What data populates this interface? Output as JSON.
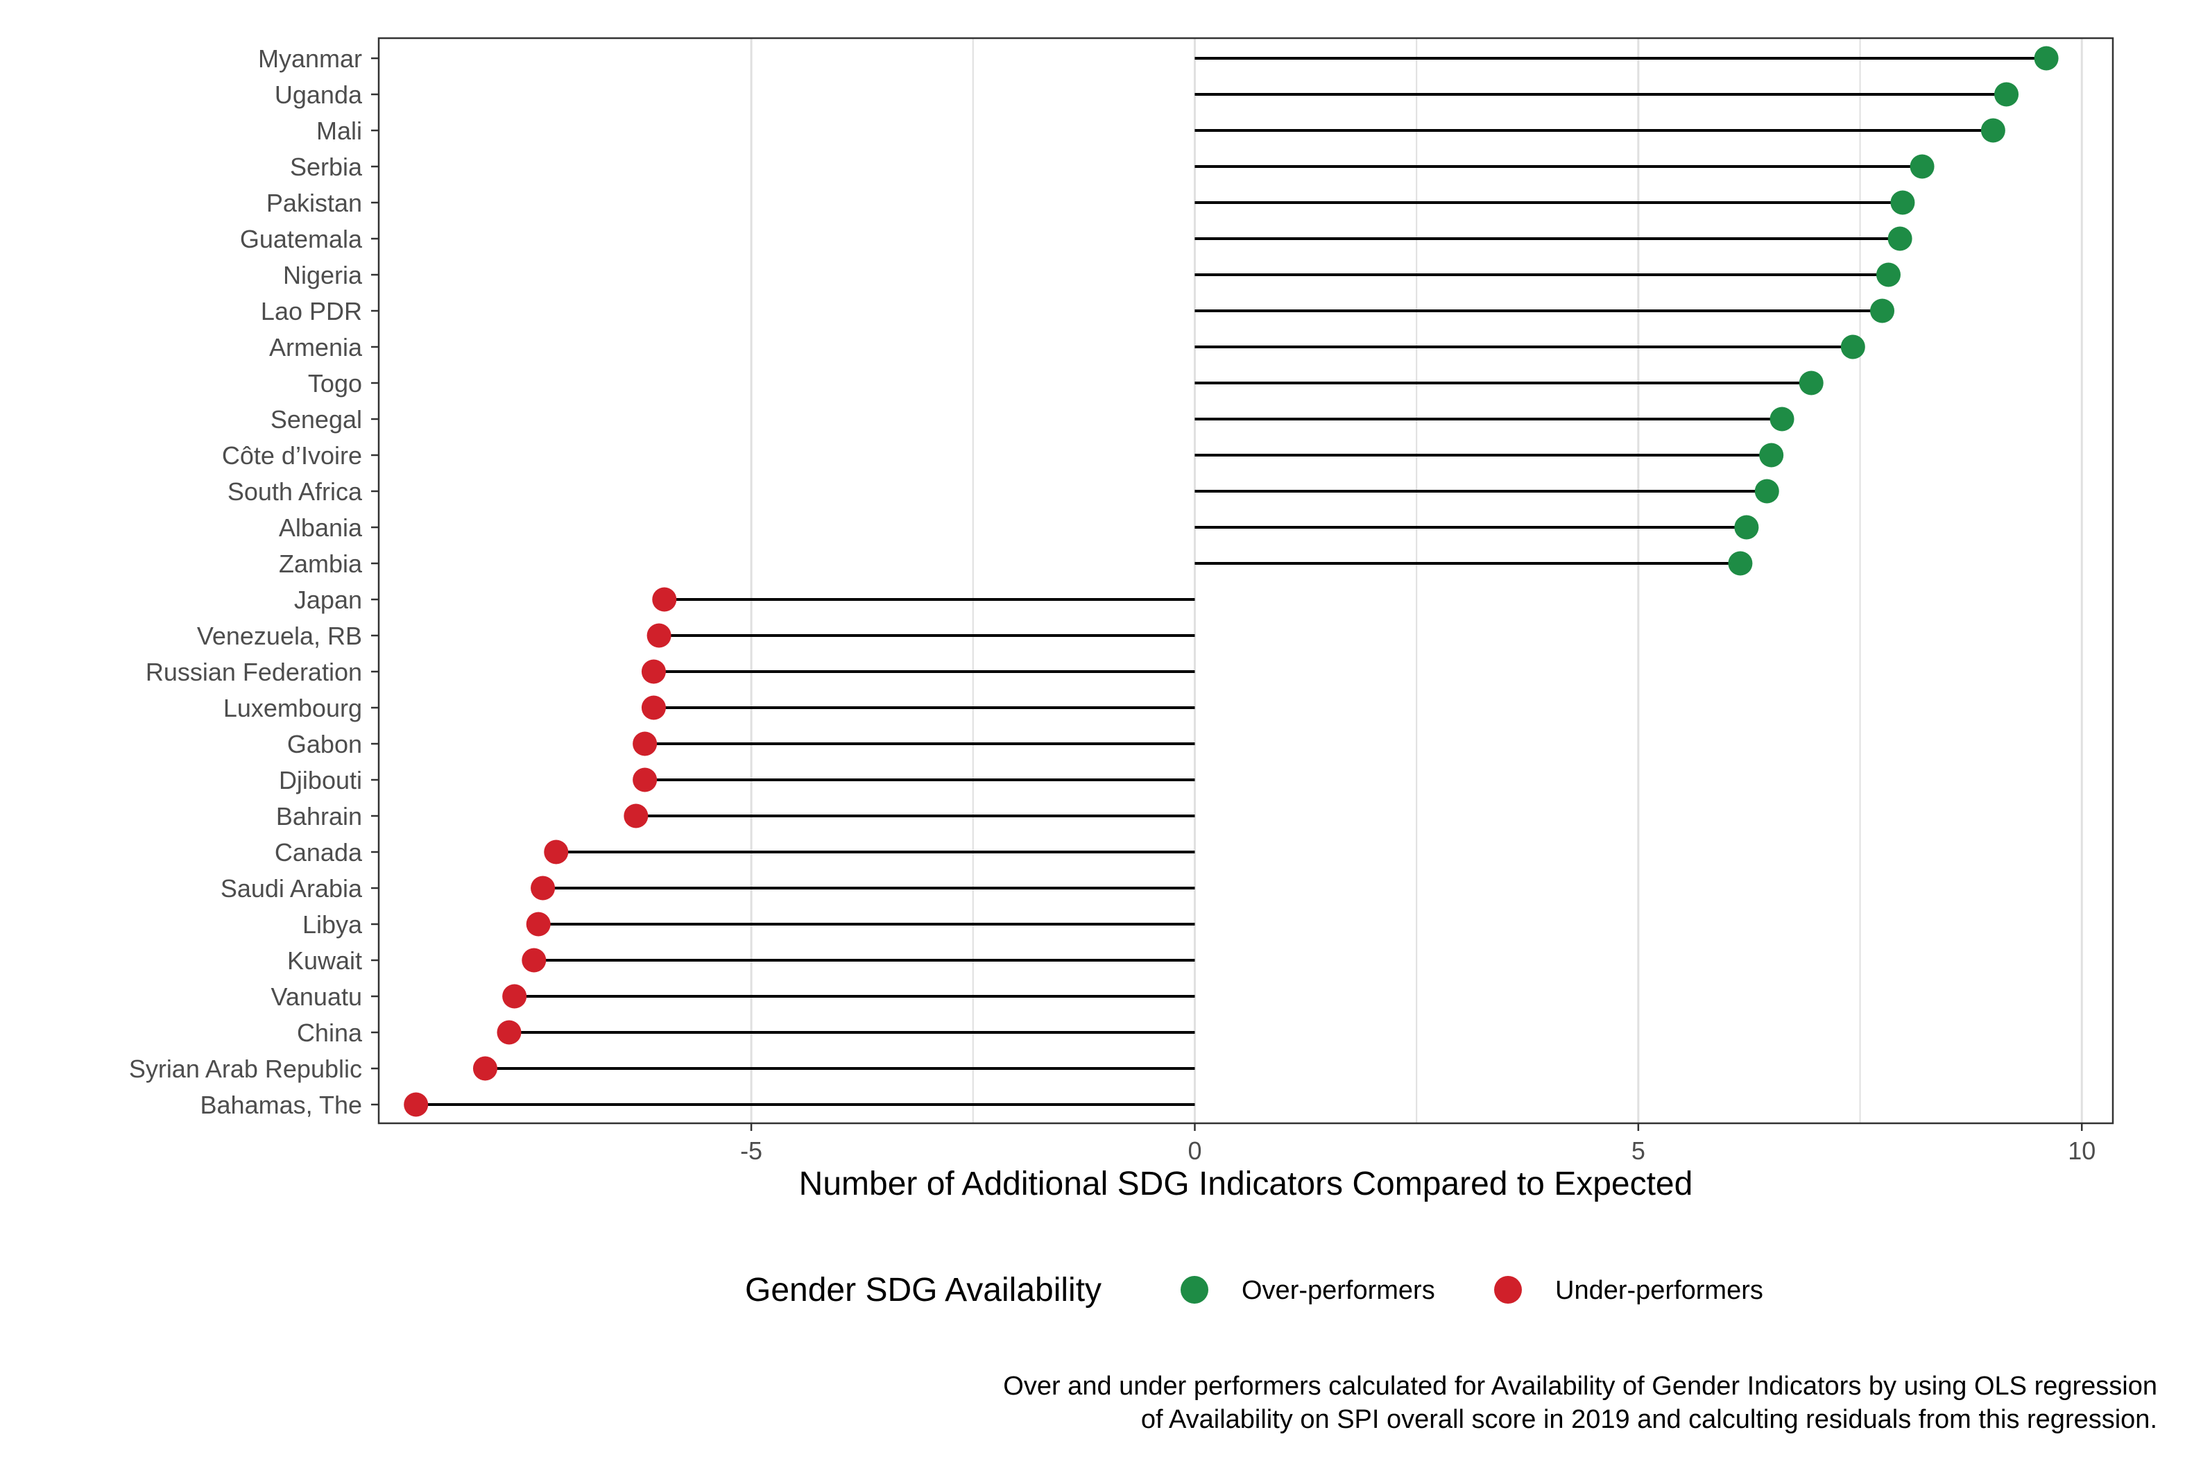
{
  "chart_data": {
    "type": "lollipop",
    "xlabel": "Number of Additional SDG Indicators Compared to Expected",
    "ylabel": "",
    "xlim": [
      -9.2,
      10.35
    ],
    "x_ticks": [
      -5,
      0,
      5,
      10
    ],
    "x_tick_labels": [
      "-5",
      "0",
      "5",
      "10"
    ],
    "grid": true,
    "legend": {
      "title": "Gender SDG Availability",
      "position": "bottom",
      "entries": [
        {
          "label": "Over-performers",
          "color": "#1e8c45"
        },
        {
          "label": "Under-performers",
          "color": "#d0202a"
        }
      ]
    },
    "caption": [
      "Over and under performers calculated for Availability of Gender Indicators by using OLS regression",
      "of Availability on SPI overall score in 2019 and calculting residuals from this regression."
    ],
    "categories": [
      "Myanmar",
      "Uganda",
      "Mali",
      "Serbia",
      "Pakistan",
      "Guatemala",
      "Nigeria",
      "Lao PDR",
      "Armenia",
      "Togo",
      "Senegal",
      "Côte d’Ivoire",
      "South Africa",
      "Albania",
      "Zambia",
      "Japan",
      "Venezuela, RB",
      "Russian Federation",
      "Luxembourg",
      "Gabon",
      "Djibouti",
      "Bahrain",
      "Canada",
      "Saudi Arabia",
      "Libya",
      "Kuwait",
      "Vanuatu",
      "China",
      "Syrian Arab Republic",
      "Bahamas, The"
    ],
    "values": [
      9.6,
      9.15,
      9.0,
      8.2,
      7.98,
      7.95,
      7.82,
      7.75,
      7.42,
      6.95,
      6.62,
      6.5,
      6.45,
      6.22,
      6.15,
      -5.98,
      -6.04,
      -6.1,
      -6.1,
      -6.2,
      -6.2,
      -6.3,
      -7.2,
      -7.35,
      -7.4,
      -7.45,
      -7.67,
      -7.73,
      -8.0,
      -8.78
    ],
    "groups": [
      "Over-performers",
      "Over-performers",
      "Over-performers",
      "Over-performers",
      "Over-performers",
      "Over-performers",
      "Over-performers",
      "Over-performers",
      "Over-performers",
      "Over-performers",
      "Over-performers",
      "Over-performers",
      "Over-performers",
      "Over-performers",
      "Over-performers",
      "Under-performers",
      "Under-performers",
      "Under-performers",
      "Under-performers",
      "Under-performers",
      "Under-performers",
      "Under-performers",
      "Under-performers",
      "Under-performers",
      "Under-performers",
      "Under-performers",
      "Under-performers",
      "Under-performers",
      "Under-performers",
      "Under-performers"
    ],
    "colors": {
      "Over-performers": "#1e8c45",
      "Under-performers": "#d0202a",
      "stem": "#000000",
      "grid": "#e0e0e0",
      "panel_border": "#333333"
    }
  }
}
